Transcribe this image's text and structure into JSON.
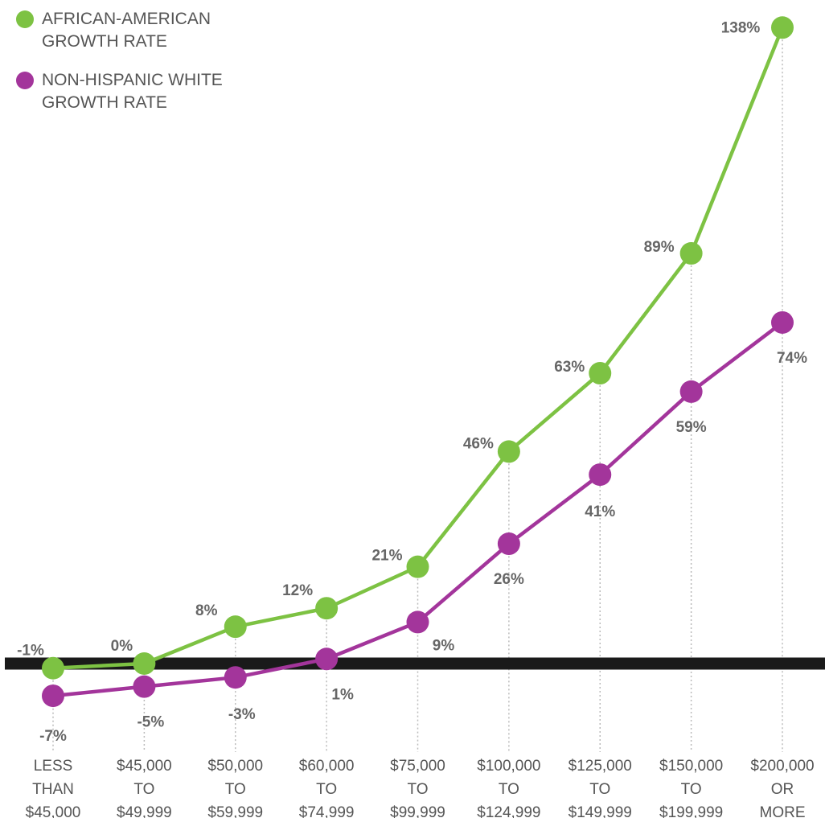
{
  "chart_data": {
    "type": "line",
    "title": "",
    "xlabel": "",
    "ylabel": "",
    "categories": [
      [
        "LESS",
        "THAN",
        "$45,000"
      ],
      [
        "$45,000",
        "TO",
        "$49,999"
      ],
      [
        "$50,000",
        "TO",
        "$59,999"
      ],
      [
        "$60,000",
        "TO",
        "$74,999"
      ],
      [
        "$75,000",
        "TO",
        "$99,999"
      ],
      [
        "$100,000",
        "TO",
        "$124,999"
      ],
      [
        "$125,000",
        "TO",
        "$149,999"
      ],
      [
        "$150,000",
        "TO",
        "$199,999"
      ],
      [
        "$200,000",
        "OR",
        "MORE"
      ]
    ],
    "ylim": [
      -15,
      140
    ],
    "grid": false,
    "legend_position": "top-left",
    "series": [
      {
        "name": "AFRICAN-AMERICAN GROWTH RATE",
        "color": "#7dc243",
        "values": [
          -1,
          0,
          8,
          12,
          21,
          46,
          63,
          89,
          138
        ],
        "labels": [
          "-1%",
          "0%",
          "8%",
          "12%",
          "21%",
          "46%",
          "63%",
          "89%",
          "138%"
        ]
      },
      {
        "name": "NON-HISPANIC WHITE GROWTH RATE",
        "color": "#a3359b",
        "values": [
          -7,
          -5,
          -3,
          1,
          9,
          26,
          41,
          59,
          74
        ],
        "labels": [
          "-7%",
          "-5%",
          "-3%",
          "1%",
          "9%",
          "26%",
          "41%",
          "59%",
          "74%"
        ]
      }
    ],
    "zero_line_color": "#1a1a1a"
  }
}
